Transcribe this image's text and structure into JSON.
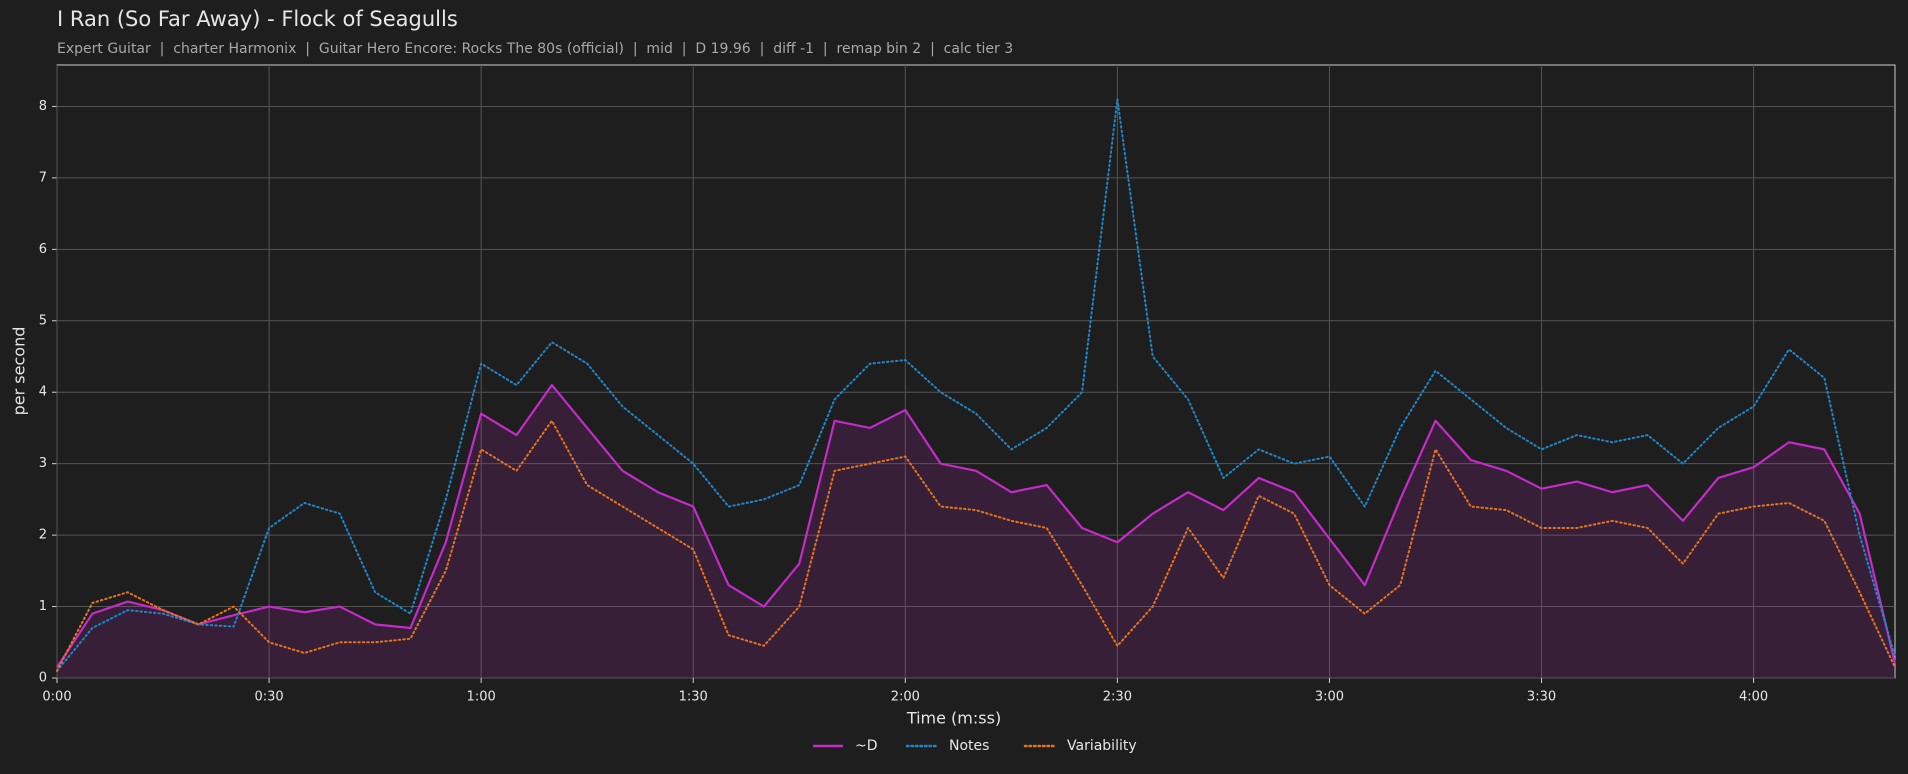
{
  "chart_data": {
    "type": "line",
    "title": "I Ran (So Far Away) - Flock of Seagulls",
    "subtitle": "Expert Guitar  |  charter Harmonix  |  Guitar Hero Encore: Rocks The 80s (official)  |  mid  |  D 19.96  |  diff -1  |  remap bin 2  |  calc tier 3",
    "x_label": "Time (m:ss)",
    "y_label": "per second",
    "x": [
      0,
      5,
      10,
      15,
      20,
      25,
      30,
      35,
      40,
      45,
      50,
      55,
      60,
      65,
      70,
      75,
      80,
      85,
      90,
      95,
      100,
      105,
      110,
      115,
      120,
      125,
      130,
      135,
      140,
      145,
      150,
      155,
      160,
      165,
      170,
      175,
      180,
      185,
      190,
      195,
      200,
      205,
      210,
      215,
      220,
      225,
      230,
      235,
      240,
      245,
      250,
      255,
      260
    ],
    "series": [
      {
        "name": "~D",
        "color": "#c42bc9",
        "style": "solid",
        "fill": true,
        "values": [
          0.15,
          0.9,
          1.07,
          0.95,
          0.75,
          0.88,
          1.0,
          0.92,
          1.0,
          0.75,
          0.7,
          1.9,
          3.7,
          3.4,
          4.1,
          3.5,
          2.9,
          2.6,
          2.4,
          1.3,
          1.0,
          1.6,
          3.6,
          3.5,
          3.75,
          3.0,
          2.9,
          2.6,
          2.7,
          2.1,
          1.9,
          2.3,
          2.6,
          2.35,
          2.8,
          2.6,
          1.95,
          1.3,
          2.5,
          3.6,
          3.05,
          2.9,
          2.65,
          2.75,
          2.6,
          2.7,
          2.2,
          2.8,
          2.95,
          3.3,
          3.2,
          2.3,
          0.2
        ]
      },
      {
        "name": "Notes",
        "color": "#1f86c8",
        "style": "dotted",
        "fill": false,
        "values": [
          0.1,
          0.7,
          0.95,
          0.9,
          0.75,
          0.72,
          2.1,
          2.45,
          2.3,
          1.2,
          0.9,
          2.5,
          4.4,
          4.1,
          4.7,
          4.4,
          3.8,
          3.4,
          3.0,
          2.4,
          2.5,
          2.7,
          3.9,
          4.4,
          4.45,
          4.0,
          3.7,
          3.2,
          3.5,
          4.0,
          8.1,
          4.5,
          3.9,
          2.8,
          3.2,
          3.0,
          3.1,
          2.4,
          3.5,
          4.3,
          3.9,
          3.5,
          3.2,
          3.4,
          3.3,
          3.4,
          3.0,
          3.5,
          3.8,
          4.6,
          4.2,
          2.0,
          0.3
        ]
      },
      {
        "name": "Variability",
        "color": "#e5741c",
        "style": "dotted",
        "fill": false,
        "values": [
          0.1,
          1.05,
          1.2,
          0.95,
          0.75,
          1.0,
          0.5,
          0.35,
          0.5,
          0.5,
          0.55,
          1.5,
          3.2,
          2.9,
          3.6,
          2.7,
          2.4,
          2.1,
          1.8,
          0.6,
          0.45,
          1.0,
          2.9,
          3.0,
          3.1,
          2.4,
          2.35,
          2.2,
          2.1,
          1.3,
          0.45,
          1.0,
          2.1,
          1.4,
          2.55,
          2.3,
          1.3,
          0.9,
          1.3,
          3.2,
          2.4,
          2.35,
          2.1,
          2.1,
          2.2,
          2.1,
          1.6,
          2.3,
          2.4,
          2.45,
          2.2,
          1.2,
          0.15
        ]
      }
    ],
    "xlim": [
      0,
      260
    ],
    "ylim": [
      0,
      8.58
    ],
    "xticks": [
      {
        "value": 0,
        "label": "0:00"
      },
      {
        "value": 30,
        "label": "0:30"
      },
      {
        "value": 60,
        "label": "1:00"
      },
      {
        "value": 90,
        "label": "1:30"
      },
      {
        "value": 120,
        "label": "2:00"
      },
      {
        "value": 150,
        "label": "2:30"
      },
      {
        "value": 180,
        "label": "3:00"
      },
      {
        "value": 210,
        "label": "3:30"
      },
      {
        "value": 240,
        "label": "4:00"
      }
    ],
    "yticks": [
      0,
      1,
      2,
      3,
      4,
      5,
      6,
      7,
      8
    ],
    "grid": true,
    "legend": "bottom"
  }
}
